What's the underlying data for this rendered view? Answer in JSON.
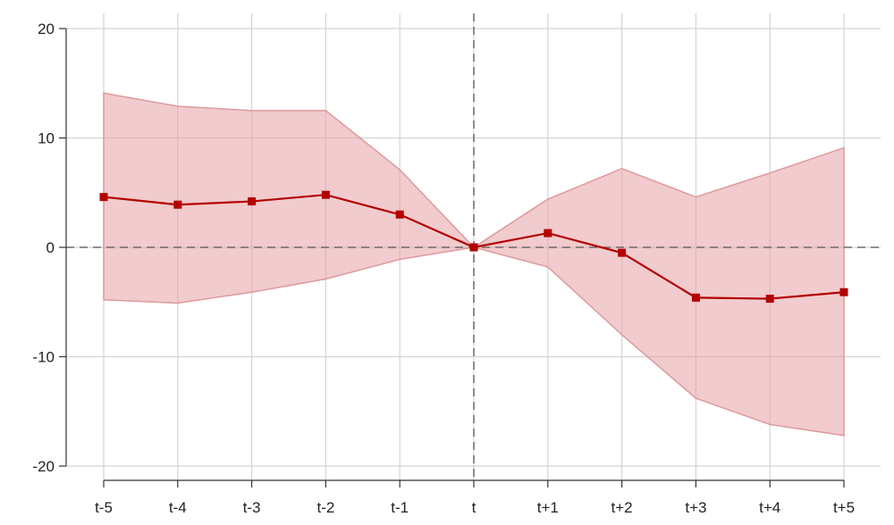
{
  "chart_data": {
    "type": "line",
    "title": "",
    "xlabel": "",
    "ylabel": "",
    "categories": [
      "t-5",
      "t-4",
      "t-3",
      "t-2",
      "t-1",
      "t",
      "t+1",
      "t+2",
      "t+3",
      "t+4",
      "t+5"
    ],
    "series": [
      {
        "values": [
          4.6,
          3.9,
          4.2,
          4.8,
          3.0,
          0.0,
          1.3,
          -0.5,
          -4.6,
          -4.7,
          -4.1
        ]
      }
    ],
    "confidence_band": {
      "upper": [
        14.1,
        12.9,
        12.5,
        12.5,
        7.1,
        0.0,
        4.4,
        7.2,
        4.6,
        6.8,
        9.1
      ],
      "lower": [
        -4.8,
        -5.1,
        -4.1,
        -2.9,
        -1.1,
        0.0,
        -1.8,
        -8.0,
        -13.8,
        -16.2,
        -17.2
      ]
    },
    "ylim": [
      -20,
      20
    ],
    "yticks": [
      "20",
      "10",
      "0",
      "-10",
      "-20"
    ],
    "ytick_values": [
      20,
      10,
      0,
      -10,
      -20
    ],
    "reference_lines": {
      "horizontal_y": 0,
      "vertical_category": "t"
    },
    "grid": true,
    "colors": {
      "line": "#b30000",
      "marker": "#b30000",
      "band_fill": "#e6a1a4",
      "band_edge": "#de9a9d",
      "grid": "#d4d4d4",
      "axis": "#333333"
    }
  }
}
